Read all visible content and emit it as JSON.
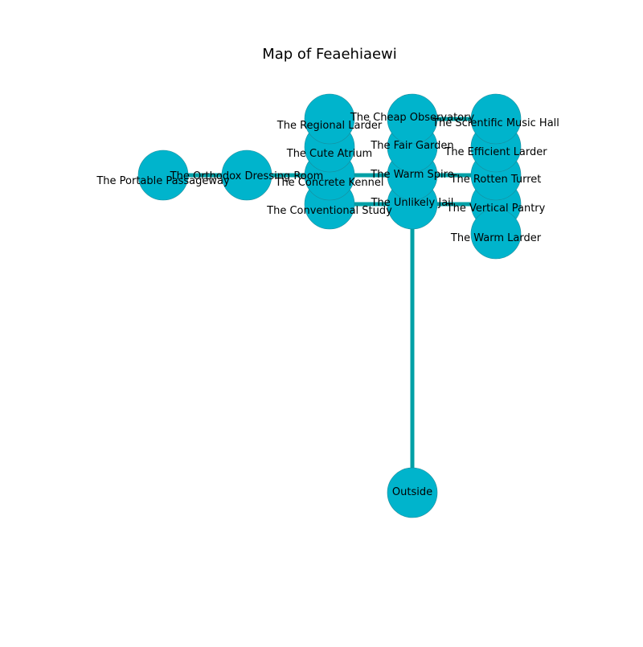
{
  "title": "Map of Feaehiaewi",
  "colors": {
    "node_fill": "#00b4cc",
    "node_stroke": "#1a8a99",
    "edge": "#00a0a6",
    "label": "#000000",
    "background": "#ffffff"
  },
  "nodes": [
    {
      "id": "outside",
      "label": "Outside"
    },
    {
      "id": "unlikely_jail",
      "label": "The Unlikely Jail"
    },
    {
      "id": "conventional_study",
      "label": "The Conventional Study"
    },
    {
      "id": "vertical_pantry",
      "label": "The Vertical Pantry"
    },
    {
      "id": "warm_larder",
      "label": "The Warm Larder"
    },
    {
      "id": "warm_spire",
      "label": "The Warm Spire"
    },
    {
      "id": "concrete_kennel",
      "label": "The Concrete Kennel"
    },
    {
      "id": "rotten_turret",
      "label": "The Rotten Turret"
    },
    {
      "id": "orthodox_dressing_room",
      "label": "The Orthodox Dressing Room"
    },
    {
      "id": "portable_passageway",
      "label": "The Portable Passageway"
    },
    {
      "id": "cute_atrium",
      "label": "The Cute Atrium"
    },
    {
      "id": "fair_garden",
      "label": "The Fair Garden"
    },
    {
      "id": "efficient_larder",
      "label": "The Efficient Larder"
    },
    {
      "id": "regional_larder",
      "label": "The Regional Larder"
    },
    {
      "id": "cheap_observatory",
      "label": "The Cheap Observatory"
    },
    {
      "id": "scientific_music_hall",
      "label": "The Scientific Music Hall"
    }
  ],
  "edges": [
    {
      "from": "outside",
      "to": "unlikely_jail"
    },
    {
      "from": "unlikely_jail",
      "to": "conventional_study"
    },
    {
      "from": "unlikely_jail",
      "to": "vertical_pantry"
    },
    {
      "from": "warm_spire",
      "to": "concrete_kennel"
    },
    {
      "from": "warm_spire",
      "to": "rotten_turret"
    },
    {
      "from": "concrete_kennel",
      "to": "orthodox_dressing_room"
    },
    {
      "from": "orthodox_dressing_room",
      "to": "portable_passageway"
    },
    {
      "from": "cheap_observatory",
      "to": "scientific_music_hall"
    }
  ]
}
